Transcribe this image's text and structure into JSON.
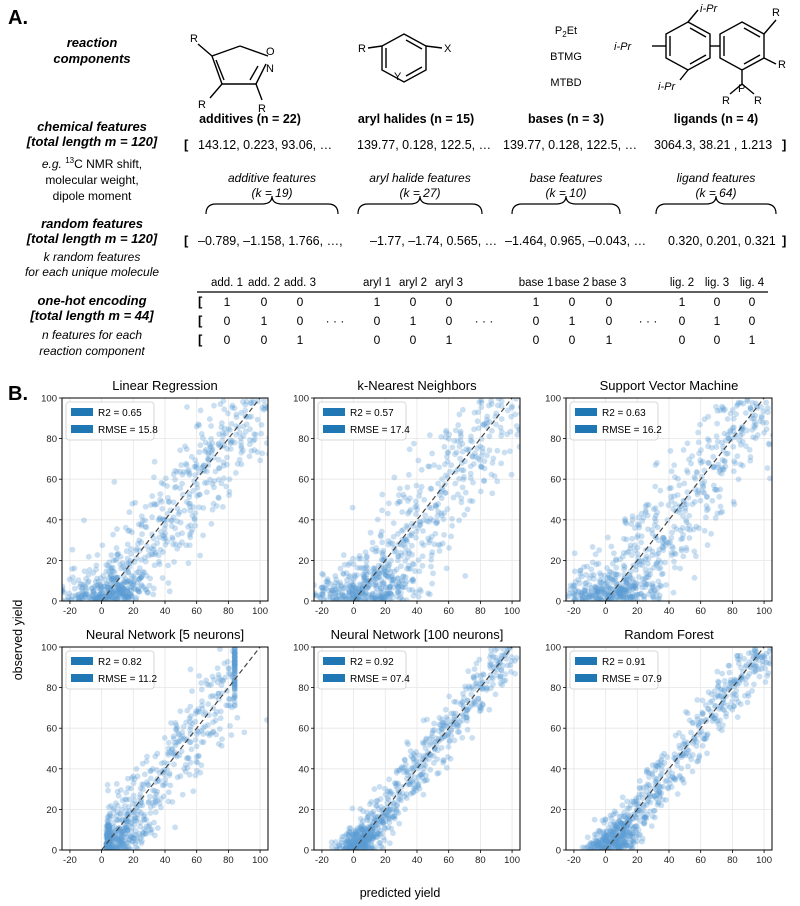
{
  "panel_a": {
    "label": "A.",
    "reaction_components": {
      "line1": "reaction",
      "line2": "components"
    },
    "components": [
      {
        "label": "additives (n = 22)",
        "features": "additive features",
        "k": "(k = 19)"
      },
      {
        "label": "aryl halides (n = 15)",
        "features": "aryl halide features",
        "k": "(k = 27)"
      },
      {
        "label": "bases (n = 3)",
        "features": "base features",
        "k": "(k = 10)"
      },
      {
        "label": "ligands (n = 4)",
        "features": "ligand features",
        "k": "(k = 64)"
      }
    ],
    "bases_list": [
      "BTMG",
      "MTBD"
    ],
    "p2et": {
      "p": "P",
      "sub": "2",
      "rest": "Et"
    },
    "structure_labels": {
      "additive": {
        "r1": "R",
        "r2": "R",
        "r3": "R",
        "o": "O",
        "n": "N"
      },
      "aryl": {
        "r": "R",
        "x": "X",
        "y": "Y"
      },
      "ligand": {
        "ipr_top": "i-Pr",
        "ipr_left": "i-Pr",
        "ipr_bottom": "i-Pr",
        "r_top": "R",
        "r_right": "R",
        "p": "P",
        "r_p1": "R",
        "r_p2": "R"
      }
    },
    "chemical": {
      "title1": "chemical features",
      "title2": "[total length m = 120]",
      "eg_prefix": "e.g.",
      "eg_sup": "13",
      "eg_rest": "C NMR shift,",
      "sub2": "molecular weight,",
      "sub3": "dipole moment",
      "vector": [
        "143.12, 0.223, 93.06, …",
        "139.77, 0.128, 122.5, …",
        "139.77, 0.128, 122.5, …",
        "3064.3, 38.21 , 1.213"
      ]
    },
    "random": {
      "title1": "random features",
      "title2": "[total length m = 120]",
      "sub1": "k random features",
      "sub2": "for each unique molecule",
      "vector": [
        "–0.789, –1.158, 1.766, …,",
        "–1.77, –1.74, 0.565, …",
        "–1.464, 0.965, –0.043, …",
        "0.320, 0.201, 0.321"
      ]
    },
    "onehot": {
      "title1": "one-hot encoding",
      "title2": "[total length m = 44]",
      "sub1": "n features for each",
      "sub2": "reaction component",
      "groups": [
        {
          "headers": [
            "add. 1",
            "add. 2",
            "add. 3"
          ]
        },
        {
          "headers": [
            "aryl 1",
            "aryl 2",
            "aryl 3"
          ]
        },
        {
          "headers": [
            "base 1",
            "base 2",
            "base 3"
          ]
        },
        {
          "headers": [
            "lig. 2",
            "lig. 3",
            "lig. 4"
          ]
        }
      ],
      "rows": [
        [
          "1",
          "0",
          "0",
          "1",
          "0",
          "0",
          "1",
          "0",
          "0",
          "1",
          "0",
          "0"
        ],
        [
          "0",
          "1",
          "0",
          "0",
          "1",
          "0",
          "0",
          "1",
          "0",
          "0",
          "1",
          "0"
        ],
        [
          "0",
          "0",
          "1",
          "0",
          "0",
          "1",
          "0",
          "0",
          "1",
          "0",
          "0",
          "1"
        ]
      ],
      "ellipsis": "· · ·",
      "bracket": "["
    },
    "bracket_open": "[",
    "bracket_close": "]"
  },
  "panel_b": {
    "label": "B.",
    "xlabel": "predicted yield",
    "ylabel": "observed yield",
    "point_color": "#5b9bd5",
    "legend_color": "#1f77b4",
    "charts": [
      {
        "title": "Linear Regression",
        "r2": "R2 = 0.65",
        "rmse": "RMSE = 15.8",
        "r2_value": 0.65,
        "rmse_value": 15.8
      },
      {
        "title": "k-Nearest Neighbors",
        "r2": "R2 = 0.57",
        "rmse": "RMSE = 17.4",
        "r2_value": 0.57,
        "rmse_value": 17.4
      },
      {
        "title": "Support Vector Machine",
        "r2": "R2 = 0.63",
        "rmse": "RMSE = 16.2",
        "r2_value": 0.63,
        "rmse_value": 16.2
      },
      {
        "title": "Neural Network [5 neurons]",
        "r2": "R2 = 0.82",
        "rmse": "RMSE = 11.2",
        "r2_value": 0.82,
        "rmse_value": 11.2
      },
      {
        "title": "Neural Network [100 neurons]",
        "r2": "R2 = 0.92",
        "rmse": "RMSE = 07.4",
        "r2_value": 0.92,
        "rmse_value": 7.4
      },
      {
        "title": "Random Forest",
        "r2": "R2 = 0.91",
        "rmse": "RMSE = 07.9",
        "r2_value": 0.91,
        "rmse_value": 7.9
      }
    ]
  },
  "chart_data": [
    {
      "type": "scatter",
      "title": "Linear Regression",
      "xlabel": "predicted yield",
      "ylabel": "observed yield",
      "xlim": [
        -25,
        105
      ],
      "ylim": [
        0,
        100
      ],
      "xticks": [
        -20,
        0,
        20,
        40,
        60,
        80,
        100
      ],
      "yticks": [
        0,
        20,
        40,
        60,
        80,
        100
      ],
      "grid": true,
      "legend": "top-left",
      "reference_line": "y = x (dashed)",
      "r2": 0.65,
      "rmse": 15.8
    },
    {
      "type": "scatter",
      "title": "k-Nearest Neighbors",
      "xlabel": "predicted yield",
      "ylabel": "observed yield",
      "xlim": [
        -25,
        105
      ],
      "ylim": [
        0,
        100
      ],
      "xticks": [
        -20,
        0,
        20,
        40,
        60,
        80,
        100
      ],
      "yticks": [
        0,
        20,
        40,
        60,
        80,
        100
      ],
      "grid": true,
      "legend": "top-left",
      "reference_line": "y = x (dashed)",
      "r2": 0.57,
      "rmse": 17.4
    },
    {
      "type": "scatter",
      "title": "Support Vector Machine",
      "xlabel": "predicted yield",
      "ylabel": "observed yield",
      "xlim": [
        -25,
        105
      ],
      "ylim": [
        0,
        100
      ],
      "xticks": [
        -20,
        0,
        20,
        40,
        60,
        80,
        100
      ],
      "yticks": [
        0,
        20,
        40,
        60,
        80,
        100
      ],
      "grid": true,
      "legend": "top-left",
      "reference_line": "y = x (dashed)",
      "r2": 0.63,
      "rmse": 16.2
    },
    {
      "type": "scatter",
      "title": "Neural Network [5 neurons]",
      "xlabel": "predicted yield",
      "ylabel": "observed yield",
      "xlim": [
        -25,
        105
      ],
      "ylim": [
        0,
        100
      ],
      "xticks": [
        -20,
        0,
        20,
        40,
        60,
        80,
        100
      ],
      "yticks": [
        0,
        20,
        40,
        60,
        80,
        100
      ],
      "grid": true,
      "legend": "top-left",
      "reference_line": "y = x (dashed)",
      "r2": 0.82,
      "rmse": 11.2
    },
    {
      "type": "scatter",
      "title": "Neural Network [100 neurons]",
      "xlabel": "predicted yield",
      "ylabel": "observed yield",
      "xlim": [
        -25,
        105
      ],
      "ylim": [
        0,
        100
      ],
      "xticks": [
        -20,
        0,
        20,
        40,
        60,
        80,
        100
      ],
      "yticks": [
        0,
        20,
        40,
        60,
        80,
        100
      ],
      "grid": true,
      "legend": "top-left",
      "reference_line": "y = x (dashed)",
      "r2": 0.92,
      "rmse": 7.4
    },
    {
      "type": "scatter",
      "title": "Random Forest",
      "xlabel": "predicted yield",
      "ylabel": "observed yield",
      "xlim": [
        -25,
        105
      ],
      "ylim": [
        0,
        100
      ],
      "xticks": [
        -20,
        0,
        20,
        40,
        60,
        80,
        100
      ],
      "yticks": [
        0,
        20,
        40,
        60,
        80,
        100
      ],
      "grid": true,
      "legend": "top-left",
      "reference_line": "y = x (dashed)",
      "r2": 0.91,
      "rmse": 7.9
    }
  ]
}
